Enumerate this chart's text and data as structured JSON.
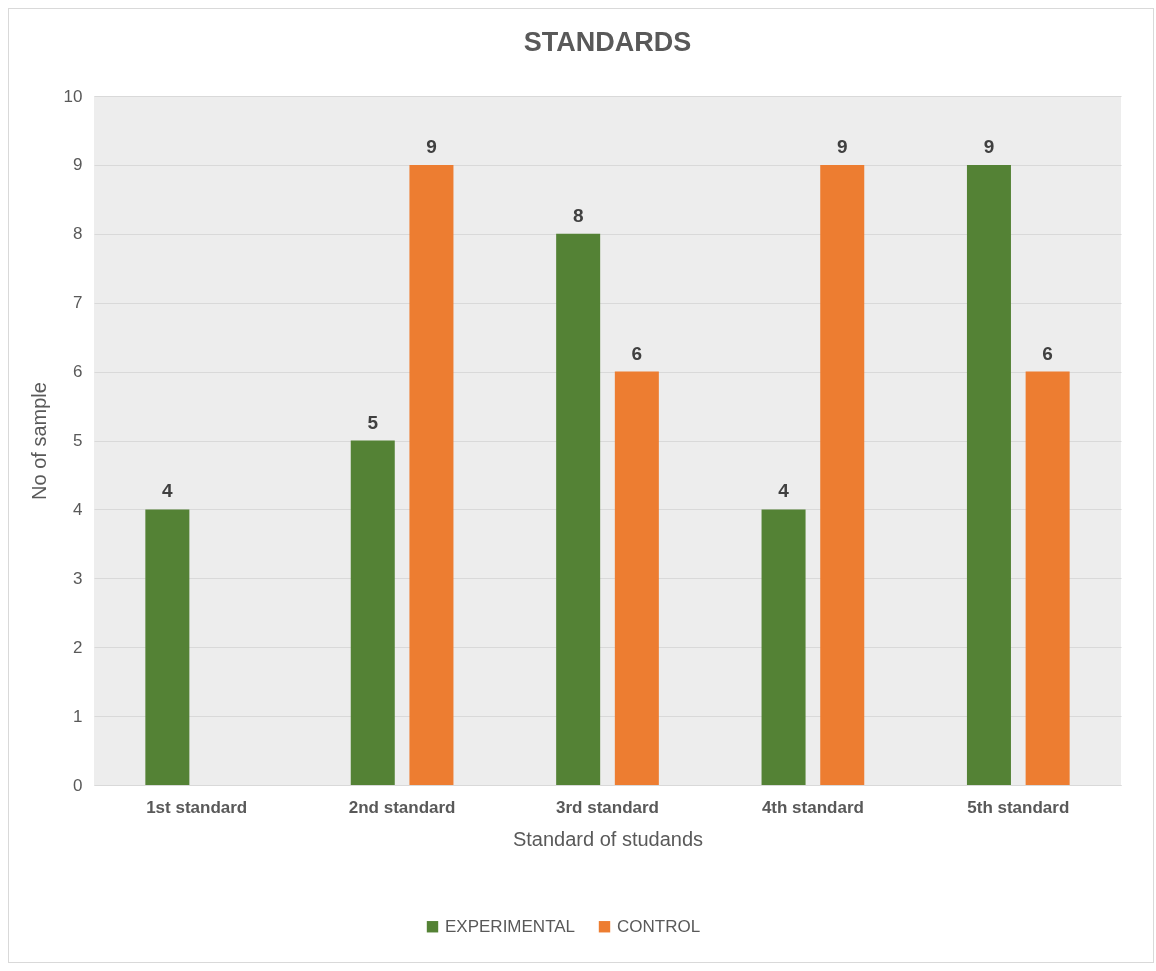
{
  "chart_data": {
    "type": "bar",
    "title": "STANDARDS",
    "xlabel": "Standard of studands",
    "ylabel": "No of sample",
    "categories": [
      "1st  standard",
      "2nd standard",
      "3rd standard",
      "4th standard",
      "5th standard"
    ],
    "series": [
      {
        "name": "EXPERIMENTAL",
        "color": "#548235",
        "values": [
          4,
          5,
          8,
          4,
          9
        ]
      },
      {
        "name": "CONTROL",
        "color": "#ed7d31",
        "values": [
          null,
          9,
          6,
          9,
          6
        ]
      }
    ],
    "ylim": [
      0,
      10
    ],
    "yticks": [
      0,
      1,
      2,
      3,
      4,
      5,
      6,
      7,
      8,
      9,
      10
    ],
    "grid": "y",
    "legend": "bottom",
    "data_labels": true
  }
}
